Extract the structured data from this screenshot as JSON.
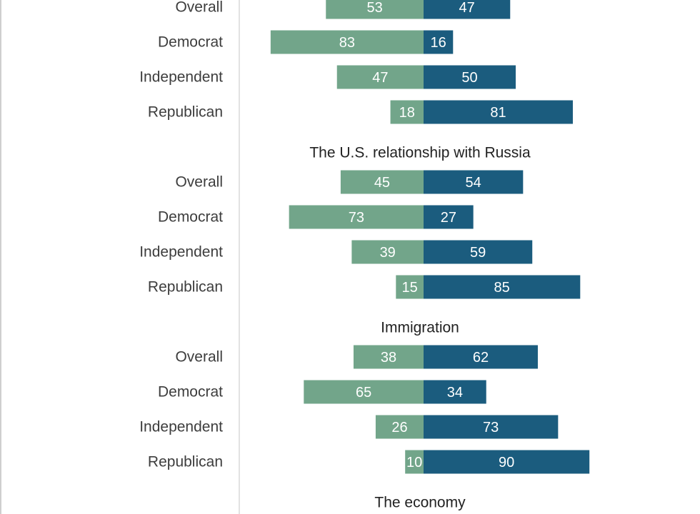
{
  "chart_data": {
    "type": "bar",
    "orientation": "horizontal-diverging",
    "colors": {
      "left": "#72a58a",
      "right": "#1b5c7e",
      "frame": "#cfcfcf"
    },
    "groups": [
      {
        "title": "",
        "rows": [
          {
            "label": "Overall",
            "left": 53,
            "right": 47
          },
          {
            "label": "Democrat",
            "left": 83,
            "right": 16
          },
          {
            "label": "Independent",
            "left": 47,
            "right": 50
          },
          {
            "label": "Republican",
            "left": 18,
            "right": 81
          }
        ]
      },
      {
        "title": "The U.S. relationship with Russia",
        "rows": [
          {
            "label": "Overall",
            "left": 45,
            "right": 54
          },
          {
            "label": "Democrat",
            "left": 73,
            "right": 27
          },
          {
            "label": "Independent",
            "left": 39,
            "right": 59
          },
          {
            "label": "Republican",
            "left": 15,
            "right": 85
          }
        ]
      },
      {
        "title": "Immigration",
        "rows": [
          {
            "label": "Overall",
            "left": 38,
            "right": 62
          },
          {
            "label": "Democrat",
            "left": 65,
            "right": 34
          },
          {
            "label": "Independent",
            "left": 26,
            "right": 73
          },
          {
            "label": "Republican",
            "left": 10,
            "right": 90
          }
        ]
      },
      {
        "title": "The economy",
        "rows": []
      }
    ]
  }
}
